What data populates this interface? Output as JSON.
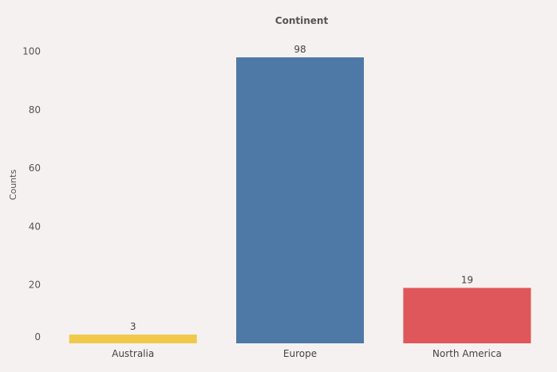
{
  "chart_data": {
    "type": "bar",
    "title": "Continent",
    "xlabel": "",
    "ylabel": "Counts",
    "categories": [
      "Australia",
      "Europe",
      "North America"
    ],
    "values": [
      3,
      98,
      19
    ],
    "colors": [
      "#f0c94b",
      "#4e79a7",
      "#e0575b"
    ],
    "ylim": [
      0,
      100
    ],
    "yticks": [
      0,
      20,
      40,
      60,
      80,
      100
    ],
    "grid": false,
    "legend": "none"
  }
}
